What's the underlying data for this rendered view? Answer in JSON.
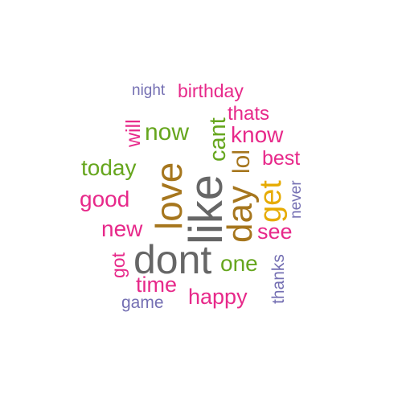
{
  "words": [
    {
      "text": "dont",
      "color": "#666666"
    },
    {
      "text": "like",
      "color": "#666666"
    },
    {
      "text": "love",
      "color": "#A6761D"
    },
    {
      "text": "day",
      "color": "#A6761D"
    },
    {
      "text": "lol",
      "color": "#A6761D"
    },
    {
      "text": "get",
      "color": "#E6AB02"
    },
    {
      "text": "now",
      "color": "#66A61E"
    },
    {
      "text": "today",
      "color": "#66A61E"
    },
    {
      "text": "cant",
      "color": "#66A61E"
    },
    {
      "text": "one",
      "color": "#66A61E"
    },
    {
      "text": "good",
      "color": "#E7298A"
    },
    {
      "text": "new",
      "color": "#E7298A"
    },
    {
      "text": "know",
      "color": "#E7298A"
    },
    {
      "text": "see",
      "color": "#E7298A"
    },
    {
      "text": "time",
      "color": "#E7298A"
    },
    {
      "text": "happy",
      "color": "#E7298A"
    },
    {
      "text": "best",
      "color": "#E7298A"
    },
    {
      "text": "birthday",
      "color": "#E7298A"
    },
    {
      "text": "thats",
      "color": "#E7298A"
    },
    {
      "text": "will",
      "color": "#E7298A"
    },
    {
      "text": "got",
      "color": "#E7298A"
    },
    {
      "text": "night",
      "color": "#7570B3"
    },
    {
      "text": "game",
      "color": "#7570B3"
    },
    {
      "text": "never",
      "color": "#7570B3"
    },
    {
      "text": "thanks",
      "color": "#7570B3"
    }
  ]
}
